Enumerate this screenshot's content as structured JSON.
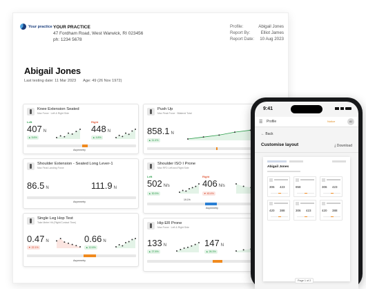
{
  "report": {
    "logo_text": "Your practice",
    "practice": {
      "name": "YOUR PRACTICE",
      "address": "47 Fordham Road, West Warwick, RI 023456",
      "phone": "ph: 1234 5678"
    },
    "meta": [
      {
        "label": "Profile:",
        "value": "Abigail Jones"
      },
      {
        "label": "Report By:",
        "value": "Elliot James"
      },
      {
        "label": "Report Date:",
        "value": "10 Aug 2023"
      }
    ],
    "patient": {
      "name": "Abigail Jones",
      "last_testing": "Last testing date: 11 Mar 2023",
      "age": "Age: 49 (26 Nov 1972)"
    },
    "cards": [
      {
        "title": "Knee Extension Seated",
        "subtitle": "Max Force · Left & Right Side",
        "left_label": "Left",
        "right_label": "Right",
        "left_value": "407",
        "right_value": "448",
        "unit": "N",
        "left_change": "5.6%",
        "right_change": "4.8%",
        "left_dir": "up",
        "right_dir": "up",
        "asym_label": "Asymmetry"
      },
      {
        "title": "Push Up",
        "subtitle": "Max Peak Force · Bilateral Total",
        "value": "858.1",
        "unit": "N",
        "change": "11.4%",
        "dir": "up",
        "asym_label": ""
      },
      {
        "title": "Shoulder Extension - Seated Long Lever-1",
        "subtitle": "Max Final Landing Force",
        "left_value": "86.5",
        "right_value": "111.9",
        "unit": "N",
        "asym_label": "Asymmetry"
      },
      {
        "title": "Shoulder ISO I Prone",
        "subtitle": "Max RFD Left and Right Side",
        "left_label": "Left",
        "right_label": "Right",
        "left_value": "502",
        "right_value": "406",
        "unit": "N/s",
        "left_change": "30.5%",
        "right_change": "40.4%",
        "left_dir": "up",
        "right_dir": "dn",
        "asym_value": "19.1%",
        "asym_label": "Asymmetry"
      },
      {
        "title": "Single Leg Hop Test",
        "subtitle": "Take Meter Hit (Flight/Contact Time)",
        "left_value": "0.47",
        "right_value": "0.66",
        "unit": "N",
        "left_change": "22.1%",
        "right_change": "12.6%",
        "left_dir": "dn",
        "right_dir": "up",
        "asym_label": "Asymmetry"
      },
      {
        "title": "Hip ER Prone",
        "subtitle": "Max Force · Left & Right Side",
        "left_value": "133",
        "right_value": "147",
        "unit": "N",
        "left_change": "27.8%",
        "right_change": "26.3%",
        "left_dir": "up",
        "right_dir": "up",
        "asym_label": "Asymmetry"
      }
    ]
  },
  "phone": {
    "time": "9:41",
    "header_title": "Profile",
    "notice": "Notice",
    "avatar": "AJ",
    "back_label": "Back",
    "page_title": "Customise layout",
    "download_label": "Download",
    "mini_name": "Abigail Jones",
    "mini_values": [
      [
        "306",
        "423"
      ],
      [
        "858"
      ],
      [
        "306",
        "423"
      ],
      [
        "420",
        "388"
      ],
      [
        "306",
        "423"
      ],
      [
        "420",
        "388"
      ]
    ],
    "page_indicator": "Page 1 of 2"
  },
  "colors": {
    "accent": "#1a3d7c",
    "good": "#2a9d4a",
    "bad": "#d94a2e",
    "asymmetry": "#f08a1e"
  },
  "chart_data": [
    {
      "type": "scatter",
      "title": "Knee Extension Seated",
      "series": [
        {
          "name": "Left",
          "values": [
            360,
            370,
            365,
            385,
            380,
            395,
            407
          ]
        },
        {
          "name": "Right",
          "values": [
            410,
            420,
            415,
            430,
            425,
            440,
            448
          ]
        }
      ]
    },
    {
      "type": "area",
      "title": "Push Up",
      "series": [
        {
          "name": "",
          "values": [
            780,
            790,
            800,
            815,
            825,
            840,
            858.1
          ]
        }
      ]
    },
    {
      "type": "scatter",
      "title": "Shoulder ISO I Prone",
      "series": [
        {
          "name": "Left",
          "values": [
            430,
            445,
            440,
            460,
            470,
            480,
            502
          ]
        },
        {
          "name": "Right",
          "values": [
            440,
            430,
            425,
            420,
            415,
            410,
            406
          ]
        }
      ]
    },
    {
      "type": "scatter",
      "title": "Single Leg Hop Test",
      "series": [
        {
          "name": "Left",
          "values": [
            0.52,
            0.54,
            0.51,
            0.5,
            0.49,
            0.48,
            0.47
          ]
        },
        {
          "name": "Right",
          "values": [
            0.58,
            0.6,
            0.59,
            0.62,
            0.63,
            0.65,
            0.66
          ]
        }
      ]
    },
    {
      "type": "scatter",
      "title": "Hip ER Prone",
      "series": [
        {
          "name": "Left",
          "values": [
            110,
            114,
            118,
            120,
            124,
            128,
            133
          ]
        },
        {
          "name": "Right",
          "values": [
            125,
            128,
            130,
            134,
            138,
            142,
            147
          ]
        }
      ]
    }
  ]
}
